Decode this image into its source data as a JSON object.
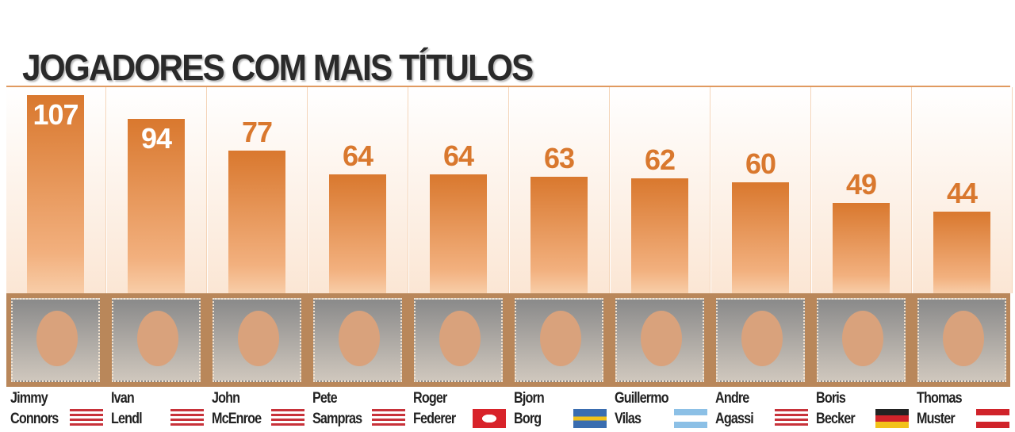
{
  "chart_data": {
    "type": "bar",
    "title": "JOGADORES COM MAIS TÍTULOS",
    "categories": [
      "Jimmy Connors",
      "Ivan Lendl",
      "John McEnroe",
      "Pete Sampras",
      "Roger Federer",
      "Bjorn Borg",
      "Guillermo Vilas",
      "Andre Agassi",
      "Boris Becker",
      "Thomas Muster"
    ],
    "values": [
      107,
      94,
      77,
      64,
      64,
      63,
      62,
      60,
      49,
      44
    ],
    "color": "#d9782e"
  }
}
